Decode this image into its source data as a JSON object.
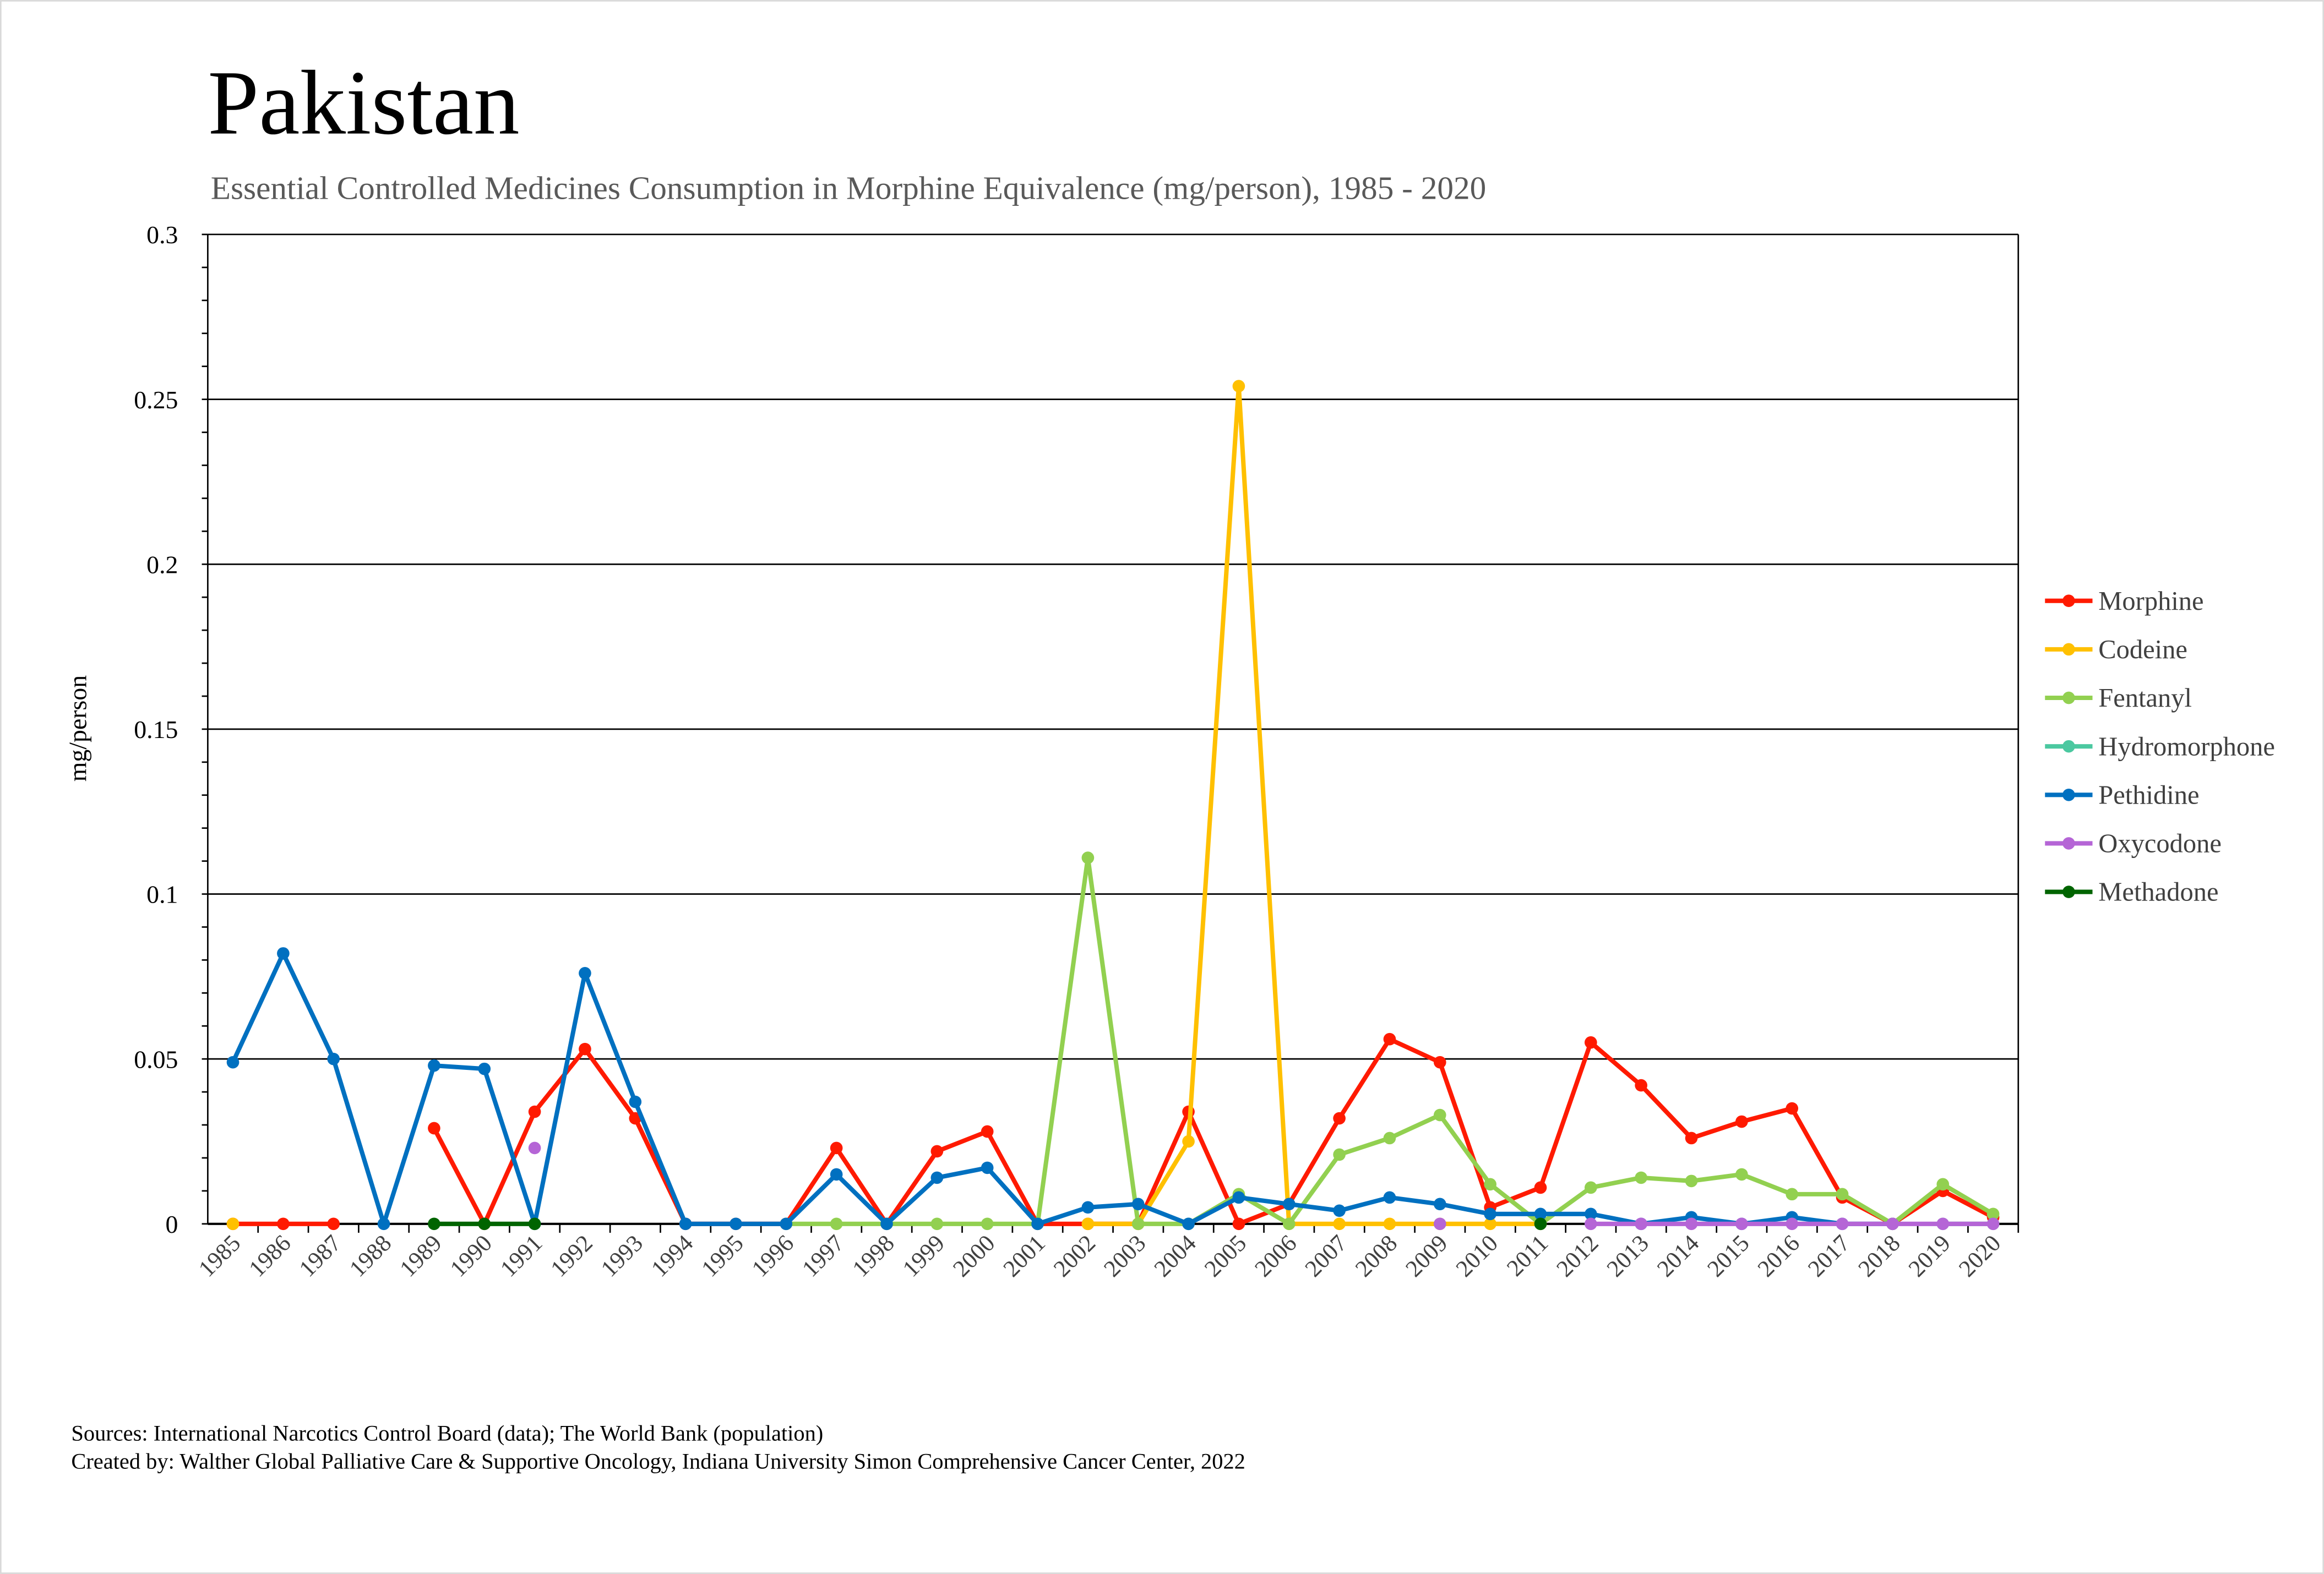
{
  "chart_data": {
    "type": "line",
    "title": "Pakistan",
    "subtitle": "Essential Controlled Medicines Consumption in Morphine Equivalence (mg/person), 1985 - 2020",
    "xlabel": "",
    "ylabel": "mg/person",
    "ylim": [
      0,
      0.3
    ],
    "yticks": [
      "0",
      "0.05",
      "0.1",
      "0.15",
      "0.2",
      "0.25",
      "0.3"
    ],
    "grid": "horizontal major",
    "legend_position": "right",
    "categories": [
      "1985",
      "1986",
      "1987",
      "1988",
      "1989",
      "1990",
      "1991",
      "1992",
      "1993",
      "1994",
      "1995",
      "1996",
      "1997",
      "1998",
      "1999",
      "2000",
      "2001",
      "2002",
      "2003",
      "2004",
      "2005",
      "2006",
      "2007",
      "2008",
      "2009",
      "2010",
      "2011",
      "2012",
      "2013",
      "2014",
      "2015",
      "2016",
      "2017",
      "2018",
      "2019",
      "2020"
    ],
    "series": [
      {
        "name": "Morphine",
        "color": "#FF1A00",
        "values": [
          0,
          0,
          0,
          null,
          0.029,
          0,
          0.034,
          0.053,
          0.032,
          0,
          0,
          0,
          0.023,
          0,
          0.022,
          0.028,
          0,
          0,
          0,
          0.034,
          0,
          0.006,
          0.032,
          0.056,
          0.049,
          0.005,
          0.011,
          0.055,
          0.042,
          0.026,
          0.031,
          0.035,
          0.008,
          0,
          0.01,
          0.002
        ]
      },
      {
        "name": "Codeine",
        "color": "#FFC000",
        "values": [
          0,
          null,
          null,
          null,
          null,
          null,
          null,
          null,
          null,
          null,
          null,
          null,
          null,
          null,
          null,
          null,
          null,
          0,
          0,
          0.025,
          0.254,
          0,
          0,
          0,
          0,
          0,
          0,
          null,
          null,
          null,
          null,
          null,
          null,
          null,
          null,
          null
        ]
      },
      {
        "name": "Fentanyl",
        "color": "#92D050",
        "values": [
          null,
          null,
          null,
          null,
          null,
          null,
          null,
          null,
          null,
          null,
          null,
          0,
          0,
          0,
          0,
          0,
          0,
          0.111,
          0,
          0,
          0.009,
          0,
          0.021,
          0.026,
          0.033,
          0.012,
          0,
          0.011,
          0.014,
          0.013,
          0.015,
          0.009,
          0.009,
          0,
          0.012,
          0.003
        ]
      },
      {
        "name": "Hydromorphone",
        "color": "#4BC8A0",
        "values": [
          null,
          null,
          null,
          null,
          null,
          null,
          null,
          null,
          null,
          null,
          null,
          null,
          null,
          null,
          null,
          null,
          null,
          null,
          null,
          null,
          null,
          null,
          null,
          null,
          null,
          null,
          null,
          null,
          null,
          null,
          null,
          null,
          null,
          null,
          0,
          0
        ]
      },
      {
        "name": "Pethidine",
        "color": "#0070C0",
        "values": [
          0.049,
          0.082,
          0.05,
          0,
          0.048,
          0.047,
          0,
          0.076,
          0.037,
          0,
          0,
          0,
          0.015,
          0,
          0.014,
          0.017,
          0,
          0.005,
          0.006,
          0,
          0.008,
          0.006,
          0.004,
          0.008,
          0.006,
          0.003,
          0.003,
          0.003,
          0,
          0.002,
          0,
          0.002,
          0,
          0,
          null,
          null
        ]
      },
      {
        "name": "Oxycodone",
        "color": "#B565D6",
        "values": [
          null,
          null,
          null,
          null,
          null,
          null,
          0.023,
          null,
          null,
          null,
          null,
          null,
          null,
          null,
          null,
          null,
          null,
          null,
          null,
          null,
          null,
          null,
          null,
          null,
          0,
          null,
          null,
          0,
          0,
          0,
          0,
          0,
          0,
          0,
          0,
          0
        ]
      },
      {
        "name": "Methadone",
        "color": "#006400",
        "values": [
          null,
          null,
          null,
          null,
          0,
          0,
          0,
          null,
          null,
          null,
          null,
          null,
          null,
          null,
          null,
          null,
          null,
          null,
          null,
          null,
          null,
          null,
          null,
          null,
          null,
          null,
          0,
          null,
          null,
          null,
          null,
          null,
          null,
          null,
          null,
          null
        ]
      }
    ]
  },
  "footer": {
    "sources": "Sources: International Narcotics Control Board (data); The World Bank (population)",
    "created_by": "Created by: Walther Global Palliative Care & Supportive Oncology, Indiana University Simon Comprehensive Cancer Center, 2022"
  }
}
